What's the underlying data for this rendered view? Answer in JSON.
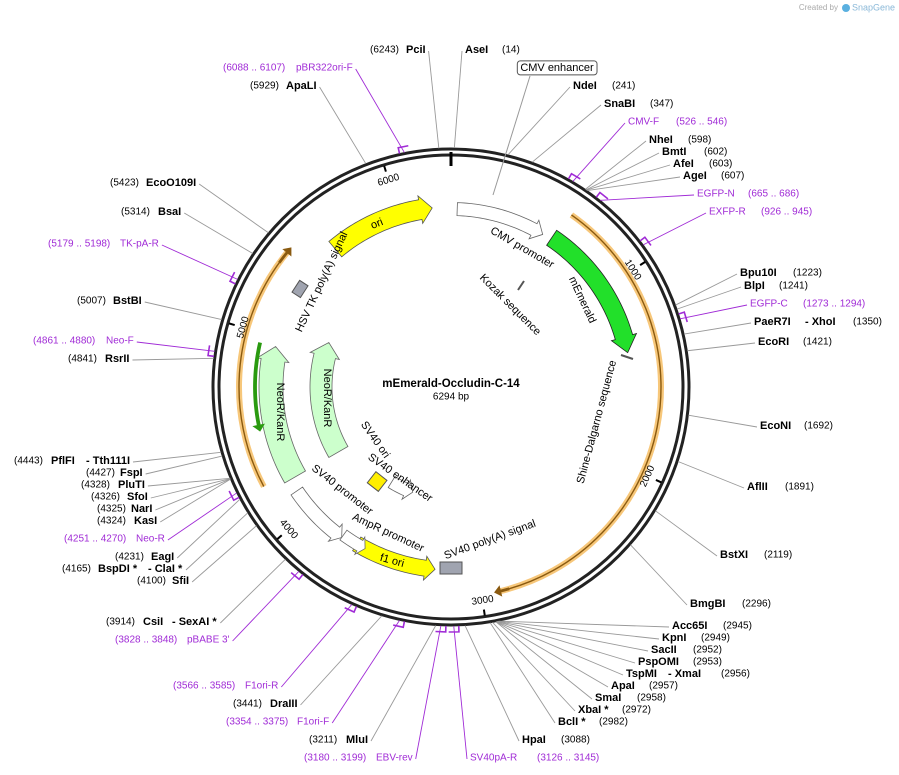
{
  "brand": {
    "created_by": "Created by",
    "name": "SnapGene"
  },
  "map": {
    "name": "mEmerald-Occludin-C-14",
    "length": "6294 bp",
    "ticks": [
      "1000",
      "2000",
      "3000",
      "4000",
      "5000",
      "6000"
    ]
  },
  "enhancer_label": "CMV enhancer",
  "features": [
    "CMV promoter",
    "mEmerald",
    "Kozak sequence",
    "Shine-Dalgarno sequence",
    "SV40 poly(A) signal",
    "f1 ori",
    "AmpR promoter",
    "SV40 promoter",
    "SV40 ori",
    "SV40 enhancer",
    "NeoR/KanR",
    "NeoR/KanR",
    "HSV TK poly(A) signal",
    "ori"
  ],
  "enzymes": [
    {
      "name": "PciI",
      "position": "(6243)"
    },
    {
      "name": "AseI",
      "position": "(14)"
    },
    {
      "name": "NdeI",
      "position": "(241)"
    },
    {
      "name": "SnaBI",
      "position": "(347)"
    },
    {
      "name": "NheI",
      "position": "(598)"
    },
    {
      "name": "BmtI",
      "position": "(602)"
    },
    {
      "name": "AfeI",
      "position": "(603)"
    },
    {
      "name": "AgeI",
      "position": "(607)"
    },
    {
      "name": "Bpu10I",
      "position": "(1223)"
    },
    {
      "name": "BlpI",
      "position": "(1241)"
    },
    {
      "name": "PaeR7I",
      "name2": "- XhoI",
      "position": "(1350)"
    },
    {
      "name": "EcoRI",
      "position": "(1421)"
    },
    {
      "name": "EcoNI",
      "position": "(1692)"
    },
    {
      "name": "AflII",
      "position": "(1891)"
    },
    {
      "name": "BstXI",
      "position": "(2119)"
    },
    {
      "name": "BmgBI",
      "position": "(2296)"
    },
    {
      "name": "Acc65I",
      "position": "(2945)"
    },
    {
      "name": "KpnI",
      "position": "(2949)"
    },
    {
      "name": "SacII",
      "position": "(2952)"
    },
    {
      "name": "PspOMI",
      "position": "(2953)"
    },
    {
      "name": "TspMI",
      "name2": "- XmaI",
      "position": "(2956)"
    },
    {
      "name": "ApaI",
      "position": "(2957)"
    },
    {
      "name": "SmaI",
      "position": "(2958)"
    },
    {
      "name": "XbaI *",
      "position": "(2972)"
    },
    {
      "name": "BclI *",
      "position": "(2982)"
    },
    {
      "name": "HpaI",
      "position": "(3088)"
    },
    {
      "name": "MluI",
      "position": "(3211)"
    },
    {
      "name": "DraIII",
      "position": "(3441)"
    },
    {
      "name": "CsiI",
      "name2": "- SexAI *",
      "position": "(3914)"
    },
    {
      "name": "SfiI",
      "position": "(4100)"
    },
    {
      "name": "BspDI *",
      "name2": "- ClaI *",
      "position": "(4165)"
    },
    {
      "name": "EagI",
      "position": "(4231)"
    },
    {
      "name": "KasI",
      "position": "(4324)"
    },
    {
      "name": "NarI",
      "position": "(4325)"
    },
    {
      "name": "SfoI",
      "position": "(4326)"
    },
    {
      "name": "PluTI",
      "position": "(4328)"
    },
    {
      "name": "FspI",
      "position": "(4427)"
    },
    {
      "name": "PflFI",
      "name2": "- Tth111I",
      "position": "(4443)"
    },
    {
      "name": "RsrII",
      "position": "(4841)"
    },
    {
      "name": "BstBI",
      "position": "(5007)"
    },
    {
      "name": "BsaI",
      "position": "(5314)"
    },
    {
      "name": "EcoO109I",
      "position": "(5423)"
    },
    {
      "name": "ApaLI",
      "position": "(5929)"
    }
  ],
  "primers": [
    {
      "name": "pBR322ori-F",
      "position": "(6088 .. 6107)"
    },
    {
      "name": "CMV-F",
      "position": "(526 .. 546)"
    },
    {
      "name": "EGFP-N",
      "position": "(665 .. 686)"
    },
    {
      "name": "EXFP-R",
      "position": "(926 .. 945)"
    },
    {
      "name": "EGFP-C",
      "position": "(1273 .. 1294)"
    },
    {
      "name": "SV40pA-R",
      "position": "(3126 .. 3145)"
    },
    {
      "name": "EBV-rev",
      "position": "(3180 .. 3199)"
    },
    {
      "name": "F1ori-F",
      "position": "(3354 .. 3375)"
    },
    {
      "name": "F1ori-R",
      "position": "(3566 .. 3585)"
    },
    {
      "name": "pBABE 3'",
      "position": "(3828 .. 3848)"
    },
    {
      "name": "Neo-R",
      "position": "(4251 .. 4270)"
    },
    {
      "name": "Neo-F",
      "position": "(4861 .. 4880)"
    },
    {
      "name": "TK-pA-R",
      "position": "(5179 .. 5198)"
    }
  ]
}
